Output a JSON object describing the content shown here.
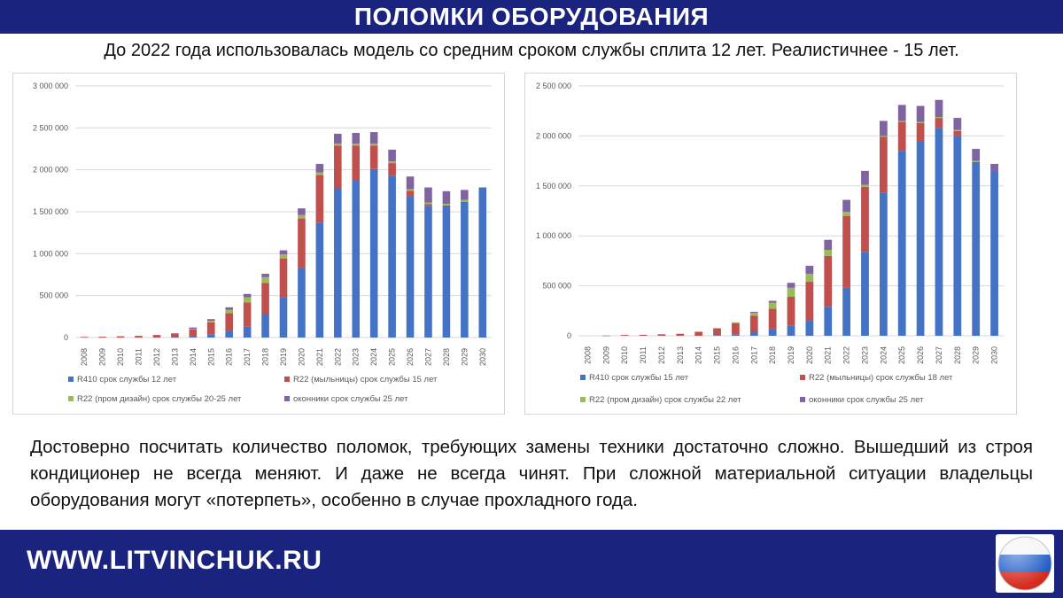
{
  "header": {
    "title": "ПОЛОМКИ ОБОРУДОВАНИЯ"
  },
  "subtitle": "До 2022 года использовалась модель со средним сроком службы сплита 12 лет. Реалистичнее - 15 лет.",
  "body_text": "Достоверно посчитать количество поломок, требующих замены техники достаточно сложно. Вышедший из строя кондиционер не всегда меняют. И даже не всегда чинят. При сложной материальной ситуации владельцы оборудования могут «потерпеть», особенно в случае прохладного года.",
  "footer": {
    "site": "WWW.LITVINCHUK.RU",
    "flag_icon": "russia-flag-icon"
  },
  "colors": {
    "brand": "#1a237e",
    "s1": "#4472c4",
    "s2": "#c0504d",
    "s3": "#9bbb59",
    "s4": "#8064a2"
  },
  "chart_data": [
    {
      "type": "bar",
      "stacked": true,
      "categories": [
        "2008",
        "2009",
        "2010",
        "2011",
        "2012",
        "2013",
        "2014",
        "2015",
        "2016",
        "2017",
        "2018",
        "2019",
        "2020",
        "2021",
        "2022",
        "2023",
        "2024",
        "2025",
        "2026",
        "2027",
        "2028",
        "2029",
        "2030"
      ],
      "series": [
        {
          "name": "R410 срок службы 12 лет",
          "color": "#4472c4",
          "values": [
            0,
            0,
            0,
            0,
            0,
            5000,
            15000,
            40000,
            80000,
            130000,
            280000,
            480000,
            830000,
            1370000,
            1780000,
            1880000,
            2010000,
            1930000,
            1680000,
            1570000,
            1570000,
            1620000,
            1790000
          ]
        },
        {
          "name": "R22 (мыльницы) срок службы 15 лет",
          "color": "#c0504d",
          "values": [
            8000,
            10000,
            15000,
            20000,
            30000,
            45000,
            80000,
            140000,
            210000,
            290000,
            370000,
            460000,
            590000,
            570000,
            510000,
            410000,
            280000,
            150000,
            70000,
            20000,
            5000,
            0,
            0
          ]
        },
        {
          "name": "R22 (пром дизайн) срок службы 20-25 лет",
          "color": "#9bbb59",
          "values": [
            0,
            0,
            0,
            0,
            0,
            0,
            10000,
            20000,
            40000,
            60000,
            70000,
            50000,
            40000,
            30000,
            20000,
            20000,
            20000,
            20000,
            20000,
            20000,
            20000,
            20000,
            0
          ]
        },
        {
          "name": "оконники срок службы 25 лет",
          "color": "#8064a2",
          "values": [
            0,
            0,
            0,
            0,
            0,
            0,
            15000,
            20000,
            30000,
            40000,
            40000,
            50000,
            80000,
            100000,
            120000,
            130000,
            140000,
            140000,
            150000,
            180000,
            150000,
            120000,
            0
          ]
        }
      ],
      "ylim": [
        0,
        3000000
      ],
      "yticks": [
        "0",
        "500 000",
        "1 000 000",
        "1 500 000",
        "2 000 000",
        "2 500 000",
        "3 000 000"
      ],
      "ytick_values": [
        0,
        500000,
        1000000,
        1500000,
        2000000,
        2500000,
        3000000
      ],
      "grid": true,
      "legend_position": "bottom"
    },
    {
      "type": "bar",
      "stacked": true,
      "categories": [
        "2008",
        "2009",
        "2010",
        "2011",
        "2012",
        "2013",
        "2014",
        "2015",
        "2016",
        "2017",
        "2018",
        "2019",
        "2020",
        "2021",
        "2022",
        "2023",
        "2024",
        "2025",
        "2026",
        "2027",
        "2028",
        "2029",
        "2030"
      ],
      "series": [
        {
          "name": "R410 срок службы 15 лет",
          "color": "#4472c4",
          "values": [
            0,
            0,
            0,
            0,
            0,
            0,
            0,
            5000,
            15000,
            40000,
            70000,
            100000,
            150000,
            290000,
            480000,
            840000,
            1430000,
            1850000,
            1950000,
            2080000,
            2000000,
            1740000,
            1640000
          ]
        },
        {
          "name": "R22 (мыльницы) срок службы 18 лет",
          "color": "#c0504d",
          "values": [
            0,
            2000,
            8000,
            10000,
            15000,
            20000,
            40000,
            70000,
            110000,
            160000,
            200000,
            290000,
            390000,
            510000,
            720000,
            650000,
            560000,
            290000,
            180000,
            100000,
            50000,
            0,
            0
          ]
        },
        {
          "name": "R22 (пром дизайн) срок службы 22 лет",
          "color": "#9bbb59",
          "values": [
            0,
            0,
            0,
            0,
            0,
            0,
            0,
            0,
            10000,
            30000,
            60000,
            90000,
            80000,
            60000,
            40000,
            20000,
            10000,
            10000,
            10000,
            10000,
            10000,
            10000,
            0
          ]
        },
        {
          "name": "оконники срок службы 25 лет",
          "color": "#8064a2",
          "values": [
            0,
            0,
            0,
            0,
            0,
            0,
            0,
            0,
            0,
            10000,
            20000,
            50000,
            80000,
            100000,
            120000,
            140000,
            150000,
            160000,
            160000,
            170000,
            120000,
            120000,
            80000
          ]
        }
      ],
      "ylim": [
        0,
        2500000
      ],
      "yticks": [
        "0",
        "500 000",
        "1 000 000",
        "1 500 000",
        "2 000 000",
        "2 500 000"
      ],
      "ytick_values": [
        0,
        500000,
        1000000,
        1500000,
        2000000,
        2500000
      ],
      "grid": true,
      "legend_position": "bottom"
    }
  ]
}
